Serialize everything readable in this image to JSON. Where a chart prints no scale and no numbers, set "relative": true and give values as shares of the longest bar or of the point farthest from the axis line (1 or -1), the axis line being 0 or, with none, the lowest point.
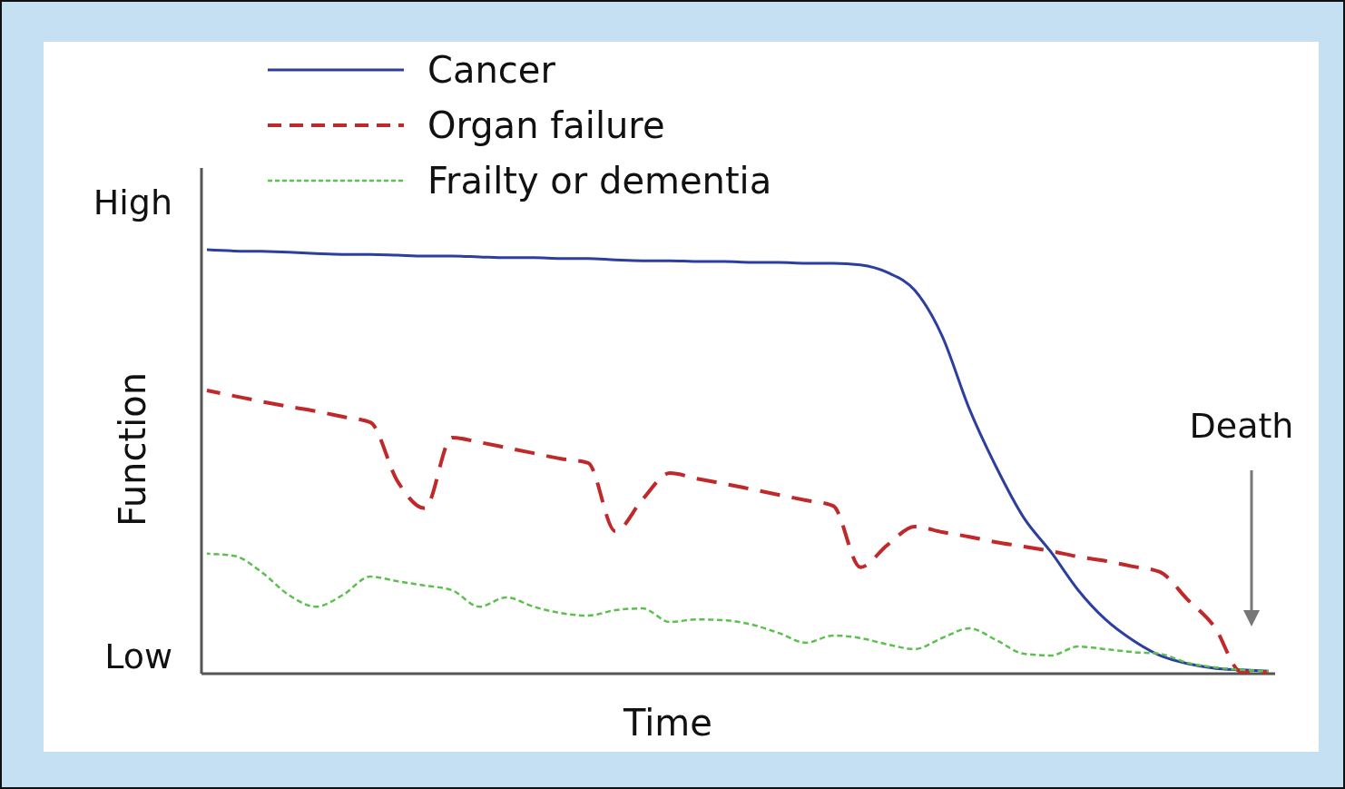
{
  "chart_data": {
    "type": "line",
    "relative": true,
    "xlabel": "Time",
    "ylabel": "Function",
    "legend": "top left",
    "annotations": [
      "High",
      "Low",
      "Death"
    ],
    "categories": [
      null,
      null,
      null,
      null,
      null,
      null,
      null,
      null,
      null,
      null,
      null,
      null,
      null,
      null,
      null,
      null,
      null,
      null,
      null,
      null,
      null,
      null,
      null,
      null,
      null,
      null,
      null,
      null,
      null,
      null,
      null,
      null,
      null,
      null,
      null,
      null,
      null,
      null,
      null,
      null
    ],
    "series": [
      {
        "name": "Cancer",
        "color": "#2c3fa0",
        "line_style": "solid",
        "values": [
          1.0,
          0.997,
          0.996,
          0.994,
          0.991,
          0.989,
          0.989,
          0.987,
          0.985,
          0.985,
          0.983,
          0.981,
          0.981,
          0.979,
          0.979,
          0.976,
          0.974,
          0.974,
          0.972,
          0.972,
          0.97,
          0.97,
          0.968,
          0.968,
          0.964,
          0.946,
          0.904,
          0.797,
          0.625,
          0.486,
          0.368,
          0.287,
          0.197,
          0.128,
          0.079,
          0.043,
          0.024,
          0.013,
          0.009,
          0.006
        ]
      },
      {
        "name": "Organ failure",
        "color": "#c0282a",
        "line_style": "dashed",
        "values": [
          0.668,
          0.655,
          0.642,
          0.63,
          0.619,
          0.606,
          0.593,
          0.454,
          0.39,
          0.557,
          0.546,
          0.533,
          0.52,
          0.507,
          0.497,
          0.336,
          0.411,
          0.473,
          0.46,
          0.448,
          0.435,
          0.422,
          0.409,
          0.396,
          0.251,
          0.304,
          0.347,
          0.334,
          0.323,
          0.31,
          0.3,
          0.289,
          0.276,
          0.266,
          0.253,
          0.24,
          0.176,
          0.111,
          0.004,
          0.004
        ]
      },
      {
        "name": "Frailty or dementia",
        "color": "#5cc04f",
        "line_style": "dotted",
        "values": [
          0.283,
          0.278,
          0.24,
          0.186,
          0.158,
          0.186,
          0.229,
          0.218,
          0.208,
          0.197,
          0.158,
          0.18,
          0.158,
          0.143,
          0.137,
          0.15,
          0.154,
          0.122,
          0.128,
          0.126,
          0.116,
          0.096,
          0.073,
          0.09,
          0.084,
          0.069,
          0.058,
          0.084,
          0.107,
          0.079,
          0.047,
          0.043,
          0.064,
          0.058,
          0.051,
          0.047,
          0.026,
          0.015,
          0.009,
          0.006
        ]
      }
    ]
  }
}
